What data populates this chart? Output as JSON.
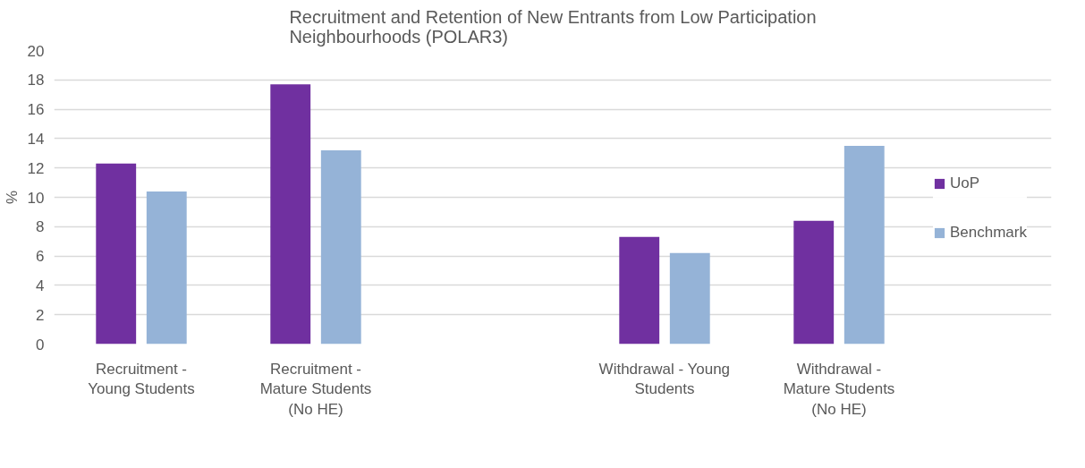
{
  "chart_data": {
    "type": "bar",
    "title": "Recruitment and Retention of New Entrants from Low Participation Neighbourhoods (POLAR3)",
    "ylabel": "%",
    "categories": [
      "Recruitment - Young Students",
      "Recruitment - Mature Students (No HE)",
      null,
      "Withdrawal - Young Students",
      "Withdrawal - Mature Students (No HE)"
    ],
    "series": [
      {
        "name": "UoP",
        "color": "#7030a0",
        "values": [
          12.3,
          17.7,
          null,
          7.3,
          8.4
        ]
      },
      {
        "name": "Benchmark",
        "color": "#95b3d7",
        "values": [
          10.4,
          13.2,
          null,
          6.2,
          13.5
        ]
      }
    ],
    "ylim": [
      0,
      20
    ],
    "yticks": [
      0,
      2,
      4,
      6,
      8,
      10,
      12,
      14,
      16,
      18,
      20
    ],
    "grid": "y",
    "legend": "right"
  }
}
